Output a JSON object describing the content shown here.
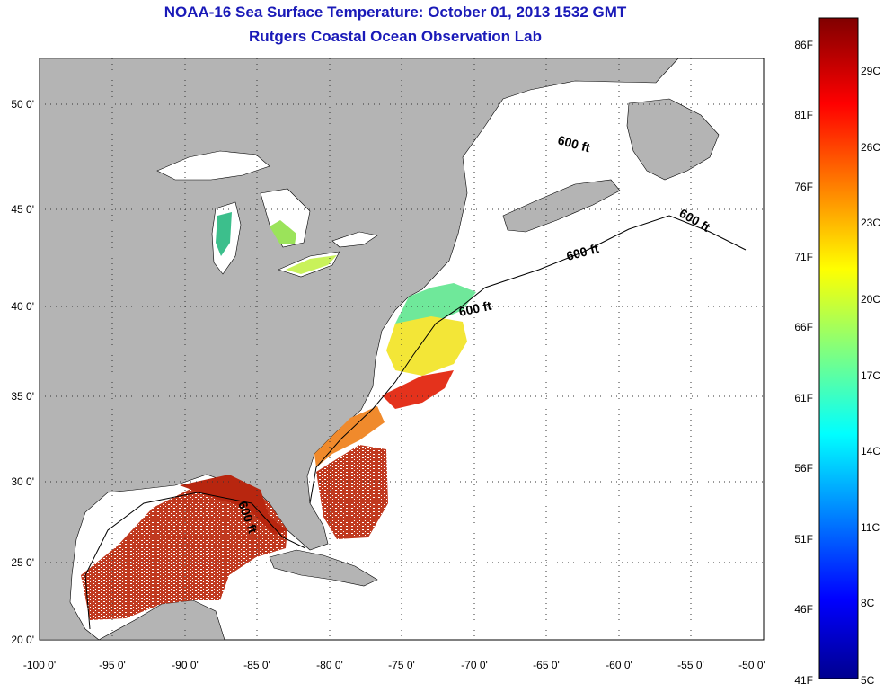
{
  "title_line1": "NOAA-16 Sea Surface Temperature:  October 01, 2013 1532 GMT",
  "title_line2": "Rutgers Coastal Ocean Observation Lab",
  "map": {
    "lon_range": [
      -100,
      -50
    ],
    "lat_range": [
      20,
      52.5
    ],
    "lon_ticks": [
      "-100 0'",
      "-95 0'",
      "-90 0'",
      "-85 0'",
      "-80 0'",
      "-75 0'",
      "-70 0'",
      "-65 0'",
      "-60 0'",
      "-55 0'",
      "-50 0'"
    ],
    "lat_ticks": [
      "20 0'",
      "25 0'",
      "30 0'",
      "35 0'",
      "40 0'",
      "45 0'",
      "50 0'"
    ],
    "contour_label": "600 ft",
    "land_color": "#b4b4b4",
    "ocean_color": "#ffffff",
    "grid": "dotted"
  },
  "colorbar": {
    "fahrenheit_labels": [
      "86F",
      "81F",
      "76F",
      "71F",
      "66F",
      "61F",
      "56F",
      "51F",
      "46F",
      "41F"
    ],
    "celsius_labels": [
      "29C",
      "26C",
      "23C",
      "20C",
      "17C",
      "14C",
      "11C",
      "8C",
      "5C"
    ],
    "range_c": [
      5,
      30.5
    ]
  }
}
